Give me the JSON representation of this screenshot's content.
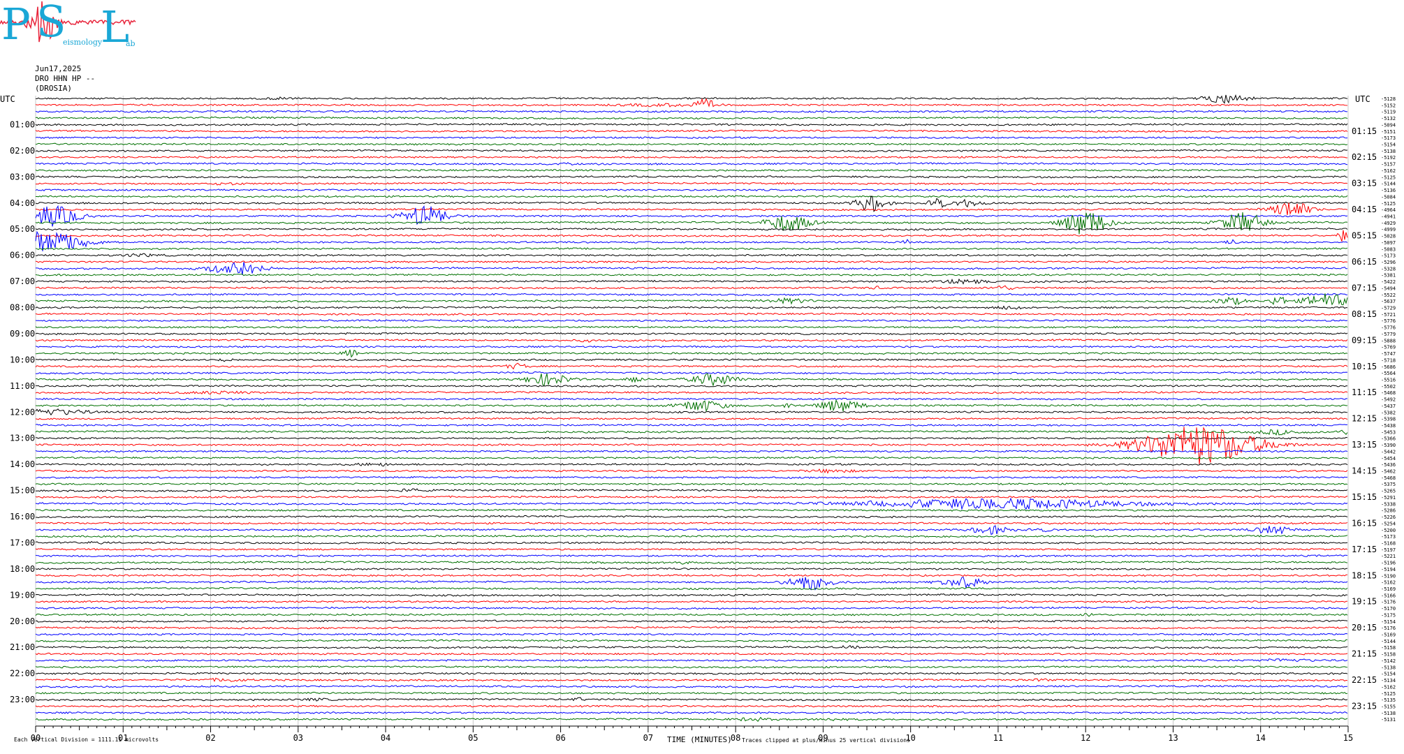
{
  "header": {
    "date": "Jun17,2025",
    "station": "DRO HHN HP --",
    "location": "(DROSIA)"
  },
  "logo": {
    "letters": [
      "P",
      "S",
      "L"
    ],
    "sub_texts": [
      "eismology",
      "ab"
    ],
    "colors": {
      "text": "#1aa7d6",
      "trace": "#e8253c"
    }
  },
  "chart_data": {
    "type": "line",
    "title": "",
    "xlabel": "TIME (MINUTES)",
    "xlim": [
      0,
      15
    ],
    "x_ticks": [
      "00",
      "01",
      "02",
      "03",
      "04",
      "05",
      "06",
      "07",
      "08",
      "09",
      "10",
      "11",
      "12",
      "13",
      "14",
      "15"
    ],
    "left_axis_title": "UTC",
    "right_axis_title": "UTC",
    "left_hour_labels": [
      "01:00",
      "02:00",
      "03:00",
      "04:00",
      "05:00",
      "06:00",
      "07:00",
      "08:00",
      "09:00",
      "10:00",
      "11:00",
      "12:00",
      "13:00",
      "14:00",
      "15:00",
      "16:00",
      "17:00",
      "18:00",
      "19:00",
      "20:00",
      "21:00",
      "22:00",
      "23:00"
    ],
    "right_hour_labels": [
      "01:15",
      "02:15",
      "03:15",
      "04:15",
      "05:15",
      "06:15",
      "07:15",
      "08:15",
      "09:15",
      "10:15",
      "11:15",
      "12:15",
      "13:15",
      "14:15",
      "15:15",
      "16:15",
      "17:15",
      "18:15",
      "19:15",
      "20:15",
      "21:15",
      "22:15",
      "23:15"
    ],
    "trace_count": 96,
    "trace_minutes": 15,
    "trace_colors": [
      "#000000",
      "#ff0000",
      "#0000ff",
      "#007000"
    ],
    "right_offsets": [
      "-5128",
      "-5152",
      "-5119",
      "-5132",
      "-5094",
      "-5151",
      "-5173",
      "-5154",
      "-5138",
      "-5192",
      "-5157",
      "-5162",
      "-5125",
      "-5144",
      "-5136",
      "-5084",
      "-5125",
      "-4964",
      "-4941",
      "-4929",
      "-4999",
      "-5028",
      "-5097",
      "-5083",
      "-5173",
      "-5296",
      "-5328",
      "-5381",
      "-5422",
      "-5494",
      "-5522",
      "-5637",
      "-5729",
      "-5721",
      "-5776",
      "-5776",
      "-5779",
      "-5888",
      "-5769",
      "-5747",
      "-5718",
      "-5686",
      "-5564",
      "-5516",
      "-5502",
      "-5468",
      "-5492",
      "-5437",
      "-5382",
      "-5398",
      "-5438",
      "-5453",
      "-5366",
      "-5390",
      "-5442",
      "-5454",
      "-5436",
      "-5462",
      "-5468",
      "-5375",
      "-5265",
      "-5291",
      "-5338",
      "-5286",
      "-5226",
      "-5254",
      "-5200",
      "-5173",
      "-5168",
      "-5197",
      "-5221",
      "-5196",
      "-5194",
      "-5190",
      "-5162",
      "-5169",
      "-5166",
      "-5176",
      "-5170",
      "-5175",
      "-5154",
      "-5176",
      "-5169",
      "-5144",
      "-5158",
      "-5158",
      "-5142",
      "-5138",
      "-5154",
      "-5134",
      "-5162",
      "-5125",
      "-5135",
      "-5155",
      "-5138",
      "-5131"
    ],
    "events": [
      {
        "trace": 0,
        "minute": 2.8,
        "amp": 1.5,
        "dur": 0.15
      },
      {
        "trace": 0,
        "minute": 13.6,
        "amp": 6,
        "dur": 0.3
      },
      {
        "trace": 1,
        "minute": 7.65,
        "amp": 7,
        "dur": 0.15
      },
      {
        "trace": 1,
        "minute": 7.2,
        "amp": 1.5,
        "dur": 0.6
      },
      {
        "trace": 10,
        "minute": 6.1,
        "amp": 1.2,
        "dur": 0.1
      },
      {
        "trace": 13,
        "minute": 2.2,
        "amp": 1.2,
        "dur": 0.2
      },
      {
        "trace": 16,
        "minute": 9.55,
        "amp": 12,
        "dur": 0.2
      },
      {
        "trace": 16,
        "minute": 10.3,
        "amp": 12,
        "dur": 0.1
      },
      {
        "trace": 16,
        "minute": 10.65,
        "amp": 5,
        "dur": 0.2
      },
      {
        "trace": 17,
        "minute": 14.35,
        "amp": 12,
        "dur": 0.25
      },
      {
        "trace": 18,
        "minute": 0.2,
        "amp": 14,
        "dur": 0.35
      },
      {
        "trace": 18,
        "minute": 4.45,
        "amp": 14,
        "dur": 0.3
      },
      {
        "trace": 19,
        "minute": 8.6,
        "amp": 12,
        "dur": 0.3
      },
      {
        "trace": 19,
        "minute": 12.0,
        "amp": 18,
        "dur": 0.3
      },
      {
        "trace": 19,
        "minute": 13.8,
        "amp": 14,
        "dur": 0.3
      },
      {
        "trace": 21,
        "minute": 14.95,
        "amp": 8,
        "dur": 0.1
      },
      {
        "trace": 22,
        "minute": 0.15,
        "amp": 16,
        "dur": 0.5
      },
      {
        "trace": 22,
        "minute": 9.95,
        "amp": 3,
        "dur": 0.05
      },
      {
        "trace": 22,
        "minute": 13.7,
        "amp": 3,
        "dur": 0.1
      },
      {
        "trace": 24,
        "minute": 1.2,
        "amp": 1.5,
        "dur": 0.3
      },
      {
        "trace": 26,
        "minute": 2.3,
        "amp": 10,
        "dur": 0.35
      },
      {
        "trace": 28,
        "minute": 10.6,
        "amp": 2.5,
        "dur": 0.3
      },
      {
        "trace": 29,
        "minute": 11.05,
        "amp": 3,
        "dur": 0.15
      },
      {
        "trace": 29,
        "minute": 9.6,
        "amp": 1.5,
        "dur": 0.1
      },
      {
        "trace": 31,
        "minute": 8.6,
        "amp": 3,
        "dur": 0.3
      },
      {
        "trace": 31,
        "minute": 13.65,
        "amp": 5,
        "dur": 0.2
      },
      {
        "trace": 31,
        "minute": 14.2,
        "amp": 8,
        "dur": 0.1
      },
      {
        "trace": 31,
        "minute": 14.75,
        "amp": 10,
        "dur": 0.3
      },
      {
        "trace": 32,
        "minute": 11.15,
        "amp": 3,
        "dur": 0.15
      },
      {
        "trace": 37,
        "minute": 6.3,
        "amp": 1.5,
        "dur": 0.1
      },
      {
        "trace": 39,
        "minute": 3.6,
        "amp": 5,
        "dur": 0.1
      },
      {
        "trace": 40,
        "minute": 2.2,
        "amp": 2,
        "dur": 0.1
      },
      {
        "trace": 41,
        "minute": 5.5,
        "amp": 3.5,
        "dur": 0.15
      },
      {
        "trace": 43,
        "minute": 5.85,
        "amp": 8,
        "dur": 0.3
      },
      {
        "trace": 43,
        "minute": 6.85,
        "amp": 5,
        "dur": 0.1
      },
      {
        "trace": 43,
        "minute": 7.75,
        "amp": 8,
        "dur": 0.3
      },
      {
        "trace": 45,
        "minute": 2.1,
        "amp": 1.5,
        "dur": 0.4
      },
      {
        "trace": 47,
        "minute": 7.6,
        "amp": 8,
        "dur": 0.3
      },
      {
        "trace": 47,
        "minute": 9.2,
        "amp": 8,
        "dur": 0.3
      },
      {
        "trace": 47,
        "minute": 8.6,
        "amp": 3,
        "dur": 0.1
      },
      {
        "trace": 48,
        "minute": 0.15,
        "amp": 4,
        "dur": 0.5
      },
      {
        "trace": 51,
        "minute": 14.2,
        "amp": 3,
        "dur": 0.3
      },
      {
        "trace": 51,
        "minute": 15.0,
        "amp": 3,
        "dur": 0.2
      },
      {
        "trace": 53,
        "minute": 13.3,
        "amp": 28,
        "dur": 0.8
      },
      {
        "trace": 56,
        "minute": 3.9,
        "amp": 1.5,
        "dur": 0.3
      },
      {
        "trace": 57,
        "minute": 9.1,
        "amp": 2,
        "dur": 0.3
      },
      {
        "trace": 60,
        "minute": 4.3,
        "amp": 1.5,
        "dur": 0.2
      },
      {
        "trace": 62,
        "minute": 11.0,
        "amp": 7,
        "dur": 1.8
      },
      {
        "trace": 66,
        "minute": 10.9,
        "amp": 6,
        "dur": 0.25
      },
      {
        "trace": 66,
        "minute": 14.15,
        "amp": 6,
        "dur": 0.25
      },
      {
        "trace": 66,
        "minute": 11.5,
        "amp": 2,
        "dur": 0.2
      },
      {
        "trace": 68,
        "minute": 0.7,
        "amp": 1.5,
        "dur": 0.1
      },
      {
        "trace": 71,
        "minute": 7.4,
        "amp": 1.5,
        "dur": 0.1
      },
      {
        "trace": 74,
        "minute": 8.85,
        "amp": 10,
        "dur": 0.3
      },
      {
        "trace": 74,
        "minute": 10.6,
        "amp": 7,
        "dur": 0.3
      },
      {
        "trace": 79,
        "minute": 12.05,
        "amp": 2,
        "dur": 0.1
      },
      {
        "trace": 80,
        "minute": 10.9,
        "amp": 1.2,
        "dur": 0.1
      },
      {
        "trace": 84,
        "minute": 9.3,
        "amp": 1.5,
        "dur": 0.15
      },
      {
        "trace": 86,
        "minute": 14.3,
        "amp": 1.5,
        "dur": 0.4
      },
      {
        "trace": 89,
        "minute": 2.2,
        "amp": 2,
        "dur": 0.25
      },
      {
        "trace": 89,
        "minute": 11.5,
        "amp": 1.5,
        "dur": 0.1
      },
      {
        "trace": 92,
        "minute": 6.2,
        "amp": 2,
        "dur": 0.1
      },
      {
        "trace": 92,
        "minute": 3.2,
        "amp": 1.2,
        "dur": 0.2
      },
      {
        "trace": 95,
        "minute": 8.2,
        "amp": 2,
        "dur": 0.25
      },
      {
        "trace": 95,
        "minute": 9.1,
        "amp": 1.2,
        "dur": 0.2
      }
    ],
    "grid": true
  },
  "footer": {
    "scale_note": "Each Vertical Division = 1111.11 microvolts",
    "clip_note": "Traces clipped at plus/minus 25 vertical divisions"
  }
}
